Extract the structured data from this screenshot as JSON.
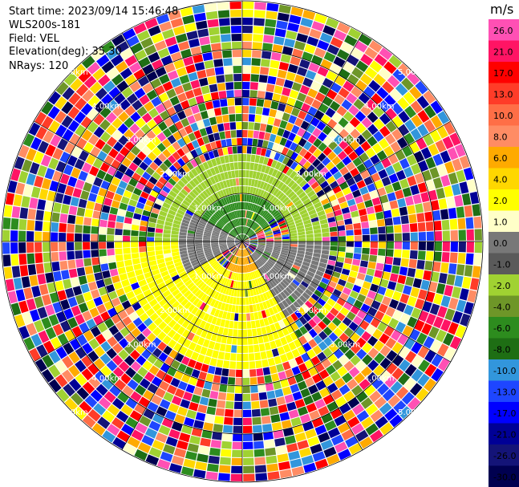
{
  "header": {
    "start_time": "Start time: 2023/09/14 15:46:48",
    "instrument": "WLS200s-181",
    "field": "Field: VEL",
    "elevation": "Elevation(deg): 35.30",
    "nrays": "NRays: 120"
  },
  "chart_data": {
    "type": "heatmap",
    "projection": "polar-ppi",
    "ray_count": 120,
    "range_rings_km": [
      1,
      2,
      3,
      4,
      5
    ],
    "range_ring_labels": [
      "1.00km",
      "2.00km",
      "3.00km",
      "4.00km",
      "5.00km"
    ],
    "max_range_km": 5,
    "gate_count": 30,
    "azimuth_lines_deg": [
      0,
      30,
      60,
      90,
      120,
      150,
      180,
      210,
      240,
      270,
      300,
      330
    ],
    "colorbar": {
      "unit": "m/s",
      "tick_labels": [
        "26.0",
        "21.0",
        "17.0",
        "13.0",
        "10.0",
        "8.0",
        "6.0",
        "4.0",
        "2.0",
        "1.0",
        "0.0",
        "-1.0",
        "-2.0",
        "-4.0",
        "-6.0",
        "-8.0",
        "-10.0",
        "-13.0",
        "-17.0",
        "-21.0",
        "-26.0",
        "-30.0"
      ],
      "colors": [
        "#ff50b4",
        "#ff1464",
        "#ff0000",
        "#ff3c28",
        "#ff6e46",
        "#ff8c64",
        "#ffaa00",
        "#ffd700",
        "#ffff00",
        "#ffffc8",
        "#787878",
        "#5a5a5a",
        "#a0d232",
        "#6e9628",
        "#2d8c1e",
        "#1e6e14",
        "#3296dc",
        "#1e46ff",
        "#0000ff",
        "#000096",
        "#141478",
        "#000050"
      ]
    },
    "field_regions": [
      {
        "azimuth_deg": [
          300,
          60
        ],
        "range_km": [
          0,
          1.0
        ],
        "velocity_ms": -6.0
      },
      {
        "azimuth_deg": [
          270,
          90
        ],
        "range_km": [
          1.0,
          1.9
        ],
        "velocity_ms": -2.0
      },
      {
        "azimuth_deg": [
          90,
          150
        ],
        "range_km": [
          0.3,
          1.9
        ],
        "velocity_ms": 0.0
      },
      {
        "azimuth_deg": [
          150,
          210
        ],
        "range_km": [
          0,
          0.7
        ],
        "velocity_ms": 6.0
      },
      {
        "azimuth_deg": [
          150,
          270
        ],
        "range_km": [
          0.7,
          2.7
        ],
        "velocity_ms": 2.0
      },
      {
        "azimuth_deg": [
          240,
          300
        ],
        "range_km": [
          0,
          1.3
        ],
        "velocity_ms": 0.0
      }
    ]
  }
}
